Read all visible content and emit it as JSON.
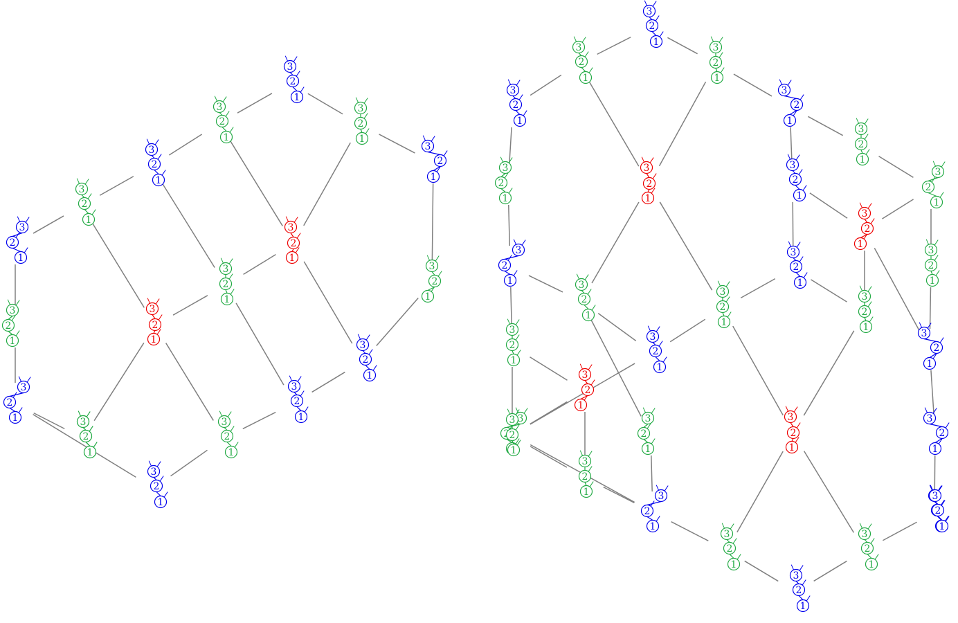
{
  "colors": {
    "blue": "#0000ee",
    "green": "#22aa44",
    "red": "#ee0000",
    "edge": "#808080",
    "background": "#ffffff"
  },
  "diagrams": [
    {
      "id": "left",
      "nodes": [
        {
          "id": "L0",
          "color": "blue",
          "labels": [
            "3",
            "2",
            "1"
          ]
        },
        {
          "id": "L1",
          "color": "green",
          "labels": [
            "3",
            "2",
            "1"
          ]
        },
        {
          "id": "L2",
          "color": "green",
          "labels": [
            "3",
            "2",
            "1"
          ]
        },
        {
          "id": "L3",
          "color": "blue",
          "labels": [
            "3",
            "2",
            "1"
          ]
        },
        {
          "id": "L4",
          "color": "blue",
          "labels": [
            "3",
            "2",
            "1"
          ]
        },
        {
          "id": "L5",
          "color": "green",
          "labels": [
            "3",
            "2",
            "1"
          ]
        },
        {
          "id": "L6",
          "color": "blue",
          "labels": [
            "3",
            "2",
            "1"
          ]
        },
        {
          "id": "L7",
          "color": "red",
          "labels": [
            "3",
            "2",
            "1"
          ]
        },
        {
          "id": "L8",
          "color": "green",
          "labels": [
            "3",
            "2",
            "1"
          ]
        },
        {
          "id": "L9",
          "color": "green",
          "labels": [
            "3",
            "2",
            "1"
          ]
        },
        {
          "id": "L10",
          "color": "red",
          "labels": [
            "3",
            "2",
            "1"
          ]
        },
        {
          "id": "L11",
          "color": "green",
          "labels": [
            "3",
            "2",
            "1"
          ]
        },
        {
          "id": "L12",
          "color": "blue",
          "labels": [
            "3",
            "2",
            "1"
          ]
        },
        {
          "id": "L13",
          "color": "blue",
          "labels": [
            "3",
            "2",
            "1"
          ]
        },
        {
          "id": "L14",
          "color": "green",
          "labels": [
            "3",
            "2",
            "1"
          ]
        },
        {
          "id": "L15",
          "color": "green",
          "labels": [
            "3",
            "2",
            "1"
          ]
        },
        {
          "id": "L16",
          "color": "blue",
          "labels": [
            "3",
            "2",
            "1"
          ]
        },
        {
          "id": "L17",
          "color": "blue",
          "labels": [
            "3",
            "2",
            "1"
          ]
        },
        {
          "id": "L18",
          "color": "green",
          "labels": [
            "3",
            "2",
            "1"
          ]
        }
      ],
      "edges": [
        [
          "L0",
          "L1"
        ],
        [
          "L0",
          "L2"
        ],
        [
          "L1",
          "L3"
        ],
        [
          "L1",
          "L7"
        ],
        [
          "L2",
          "L4"
        ],
        [
          "L2",
          "L7"
        ],
        [
          "L3",
          "L5"
        ],
        [
          "L3",
          "L8"
        ],
        [
          "L4",
          "L9"
        ],
        [
          "L5",
          "L6"
        ],
        [
          "L5",
          "L10"
        ],
        [
          "L6",
          "L11"
        ],
        [
          "L7",
          "L8"
        ],
        [
          "L7",
          "L12"
        ],
        [
          "L8",
          "L10"
        ],
        [
          "L8",
          "L13"
        ],
        [
          "L9",
          "L12"
        ],
        [
          "L10",
          "L14"
        ],
        [
          "L10",
          "L15"
        ],
        [
          "L11",
          "L16"
        ],
        [
          "L12",
          "L13"
        ],
        [
          "L13",
          "L15"
        ],
        [
          "L14",
          "L16"
        ],
        [
          "L14",
          "L18"
        ],
        [
          "L15",
          "L17"
        ],
        [
          "L16",
          "L17"
        ]
      ]
    },
    {
      "id": "right",
      "nodes": [
        {
          "id": "R0",
          "color": "blue",
          "labels": [
            "3",
            "2",
            "1"
          ]
        },
        {
          "id": "R1",
          "color": "green",
          "labels": [
            "3",
            "2",
            "1"
          ]
        },
        {
          "id": "R2",
          "color": "green",
          "labels": [
            "3",
            "2",
            "1"
          ]
        },
        {
          "id": "R3",
          "color": "blue",
          "labels": [
            "3",
            "2",
            "1"
          ]
        },
        {
          "id": "R4",
          "color": "blue",
          "labels": [
            "3",
            "2",
            "1"
          ]
        },
        {
          "id": "R5",
          "color": "green",
          "labels": [
            "3",
            "2",
            "1"
          ]
        },
        {
          "id": "R6",
          "color": "red",
          "labels": [
            "3",
            "2",
            "1"
          ]
        },
        {
          "id": "R7",
          "color": "green",
          "labels": [
            "3",
            "2",
            "1"
          ]
        },
        {
          "id": "R8",
          "color": "blue",
          "labels": [
            "3",
            "2",
            "1"
          ]
        },
        {
          "id": "R9",
          "color": "green",
          "labels": [
            "3",
            "2",
            "1"
          ]
        },
        {
          "id": "R10",
          "color": "red",
          "labels": [
            "3",
            "2",
            "1"
          ]
        },
        {
          "id": "R11",
          "color": "blue",
          "labels": [
            "3",
            "2",
            "1"
          ]
        },
        {
          "id": "R12",
          "color": "blue",
          "labels": [
            "3",
            "2",
            "1"
          ]
        },
        {
          "id": "R13",
          "color": "green",
          "labels": [
            "3",
            "2",
            "1"
          ]
        },
        {
          "id": "R14",
          "color": "green",
          "labels": [
            "3",
            "2",
            "1"
          ]
        },
        {
          "id": "R15",
          "color": "green",
          "labels": [
            "3",
            "2",
            "1"
          ]
        },
        {
          "id": "R16",
          "color": "green",
          "labels": [
            "3",
            "2",
            "1"
          ]
        },
        {
          "id": "R17",
          "color": "blue",
          "labels": [
            "3",
            "2",
            "1"
          ]
        },
        {
          "id": "R18",
          "color": "green",
          "labels": [
            "3",
            "2",
            "1"
          ]
        },
        {
          "id": "R19",
          "color": "blue",
          "labels": [
            "3",
            "2",
            "1"
          ]
        },
        {
          "id": "R20",
          "color": "red",
          "labels": [
            "3",
            "2",
            "1"
          ]
        },
        {
          "id": "R21",
          "color": "green",
          "labels": [
            "3",
            "2",
            "1"
          ]
        },
        {
          "id": "R22",
          "color": "blue",
          "labels": [
            "3",
            "2",
            "1"
          ]
        },
        {
          "id": "R23",
          "color": "green",
          "labels": [
            "3",
            "2",
            "1"
          ]
        },
        {
          "id": "R24",
          "color": "red",
          "labels": [
            "3",
            "2",
            "1"
          ]
        },
        {
          "id": "R25",
          "color": "green",
          "labels": [
            "3",
            "2",
            "1"
          ]
        },
        {
          "id": "R26",
          "color": "blue",
          "labels": [
            "3",
            "2",
            "1"
          ]
        },
        {
          "id": "R27",
          "color": "green",
          "labels": [
            "3",
            "2",
            "1"
          ]
        },
        {
          "id": "R28",
          "color": "blue",
          "labels": [
            "3",
            "2",
            "1"
          ]
        },
        {
          "id": "R29",
          "color": "green",
          "labels": [
            "3",
            "2",
            "1"
          ]
        },
        {
          "id": "R30",
          "color": "green",
          "labels": [
            "3",
            "2",
            "1"
          ]
        },
        {
          "id": "R31",
          "color": "blue",
          "labels": [
            "3",
            "2",
            "1"
          ]
        },
        {
          "id": "R32",
          "color": "blue",
          "labels": [
            "3",
            "2",
            "1"
          ]
        }
      ],
      "edges": [
        [
          "R0",
          "R1"
        ],
        [
          "R0",
          "R2"
        ],
        [
          "R1",
          "R3"
        ],
        [
          "R1",
          "R6"
        ],
        [
          "R2",
          "R6"
        ],
        [
          "R2",
          "R4"
        ],
        [
          "R3",
          "R5"
        ],
        [
          "R4",
          "R7"
        ],
        [
          "R4",
          "R8"
        ],
        [
          "R5",
          "R11"
        ],
        [
          "R6",
          "R14"
        ],
        [
          "R6",
          "R15"
        ],
        [
          "R7",
          "R9"
        ],
        [
          "R8",
          "R10"
        ],
        [
          "R8",
          "R12"
        ],
        [
          "R9",
          "R10"
        ],
        [
          "R9",
          "R13"
        ],
        [
          "R10",
          "R16"
        ],
        [
          "R10",
          "R17"
        ],
        [
          "R11",
          "R14"
        ],
        [
          "R11",
          "R18"
        ],
        [
          "R12",
          "R15"
        ],
        [
          "R12",
          "R16"
        ],
        [
          "R13",
          "R17"
        ],
        [
          "R14",
          "R19"
        ],
        [
          "R14",
          "R21"
        ],
        [
          "R15",
          "R19"
        ],
        [
          "R15",
          "R24"
        ],
        [
          "R16",
          "R24"
        ],
        [
          "R17",
          "R22"
        ],
        [
          "R18",
          "R20"
        ],
        [
          "R18",
          "R25"
        ],
        [
          "R19",
          "R23"
        ],
        [
          "R20",
          "R23"
        ],
        [
          "R20",
          "R27"
        ],
        [
          "R21",
          "R28"
        ],
        [
          "R22",
          "R26"
        ],
        [
          "R23",
          "R28"
        ],
        [
          "R24",
          "R29"
        ],
        [
          "R24",
          "R30"
        ],
        [
          "R25",
          "R27"
        ],
        [
          "R26",
          "R31"
        ],
        [
          "R27",
          "R28"
        ],
        [
          "R28",
          "R29"
        ],
        [
          "R29",
          "R32"
        ],
        [
          "R30",
          "R31"
        ],
        [
          "R30",
          "R32"
        ]
      ]
    }
  ]
}
